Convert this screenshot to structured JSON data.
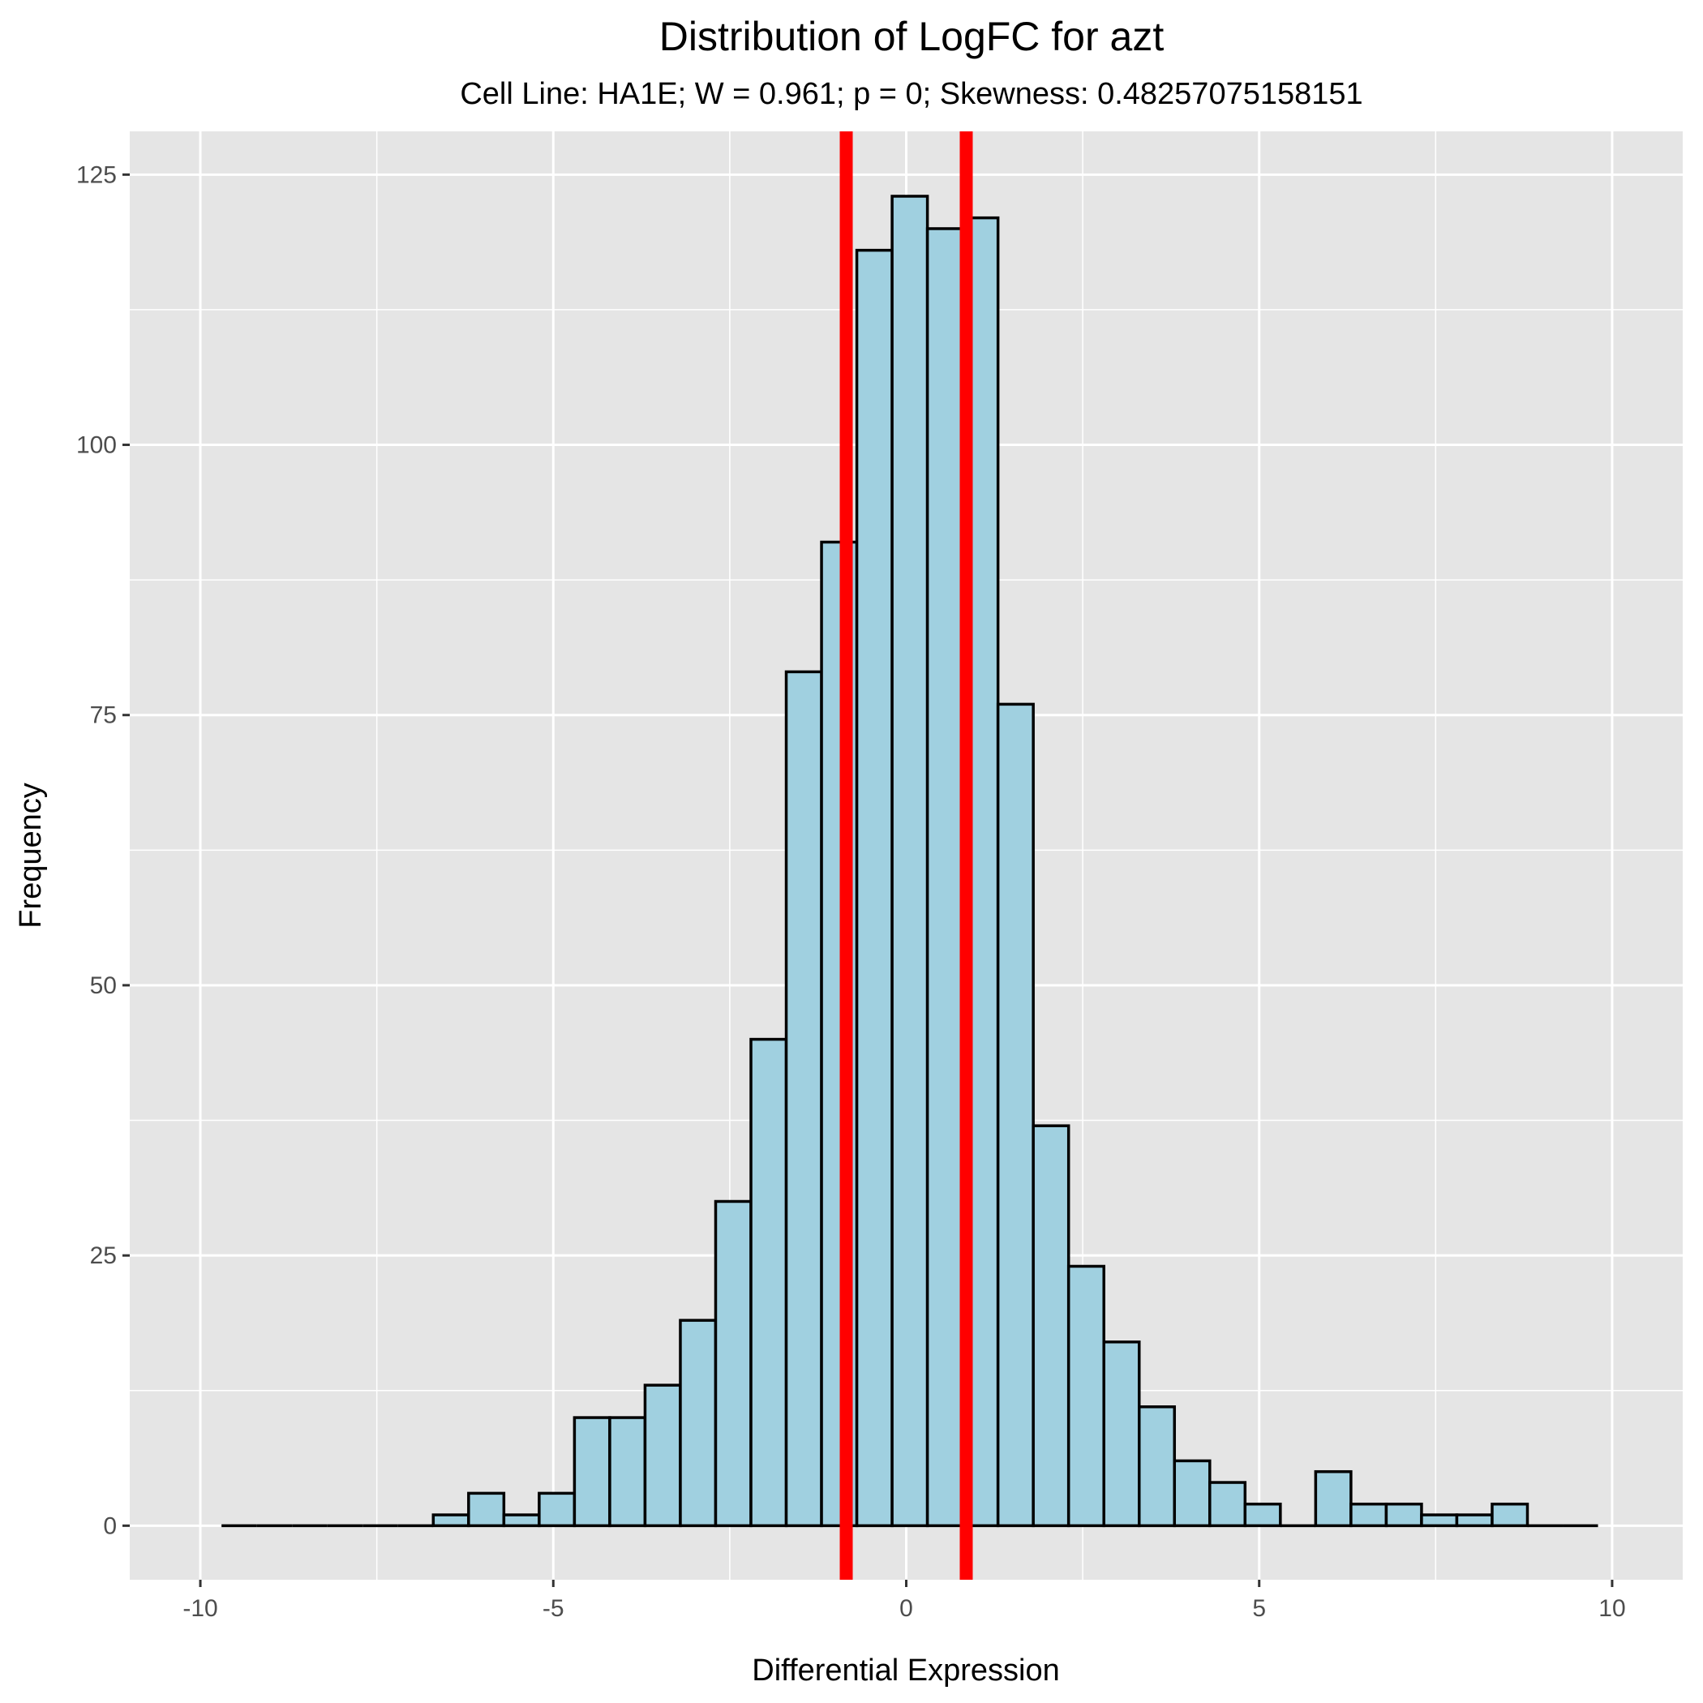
{
  "chart_data": {
    "type": "bar",
    "title": "Distribution of LogFC for azt",
    "subtitle": "Cell Line: HA1E; W = 0.961; p = 0; Skewness: 0.48257075158151",
    "xlabel": "Differential Expression",
    "ylabel": "Frequency",
    "xlim": [
      -11.0,
      11.0
    ],
    "ylim": [
      -5,
      129
    ],
    "x_ticks": [
      -10,
      -5,
      0,
      5,
      10
    ],
    "y_ticks": [
      0,
      25,
      50,
      75,
      100,
      125
    ],
    "x_tick_labels": [
      "-10",
      "-5",
      "0",
      "5",
      "10"
    ],
    "y_tick_labels": [
      "0",
      "25",
      "50",
      "75",
      "100",
      "125"
    ],
    "grid": true,
    "bin_width": 0.5,
    "bin_start": -9.7,
    "counts": [
      0,
      0,
      0,
      0,
      0,
      0,
      1,
      3,
      1,
      3,
      10,
      10,
      13,
      19,
      30,
      45,
      79,
      91,
      118,
      123,
      120,
      121,
      76,
      37,
      24,
      17,
      11,
      6,
      4,
      2,
      0,
      5,
      2,
      2,
      1,
      1,
      2,
      0,
      0
    ],
    "vlines": [
      -0.85,
      0.85
    ],
    "colors": {
      "bar_fill": "#a0d0e0",
      "bar_stroke": "#000000",
      "vline": "#ff0000",
      "panel": "#e5e5e5",
      "grid": "#ffffff"
    }
  }
}
